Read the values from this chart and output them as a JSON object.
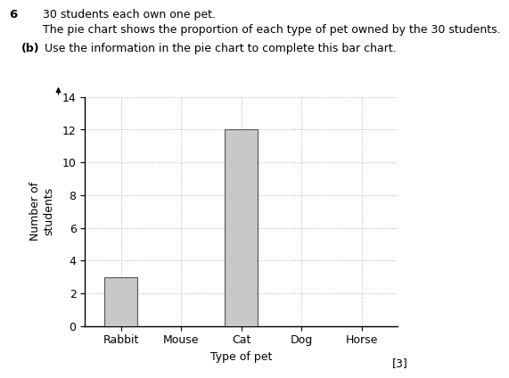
{
  "title_number": "6",
  "title_line1": "30 students each own one pet.",
  "title_line2": "The pie chart shows the proportion of each type of pet owned by the 30 students.",
  "subtitle_bold": "(b)",
  "subtitle_rest": "  Use the information in the pie chart to complete this bar chart.",
  "categories": [
    "Rabbit",
    "Mouse",
    "Cat",
    "Dog",
    "Horse"
  ],
  "values": [
    3,
    0,
    12,
    0,
    0
  ],
  "bar_color": "#c8c8c8",
  "bar_edgecolor": "#555555",
  "ylabel": "Number of\nstudents",
  "xlabel": "Type of pet",
  "ylim": [
    0,
    14
  ],
  "yticks": [
    0,
    2,
    4,
    6,
    8,
    10,
    12,
    14
  ],
  "grid_color": "#bbbbbb",
  "grid_style": ":",
  "background_color": "#ffffff",
  "annotation": "[3]"
}
